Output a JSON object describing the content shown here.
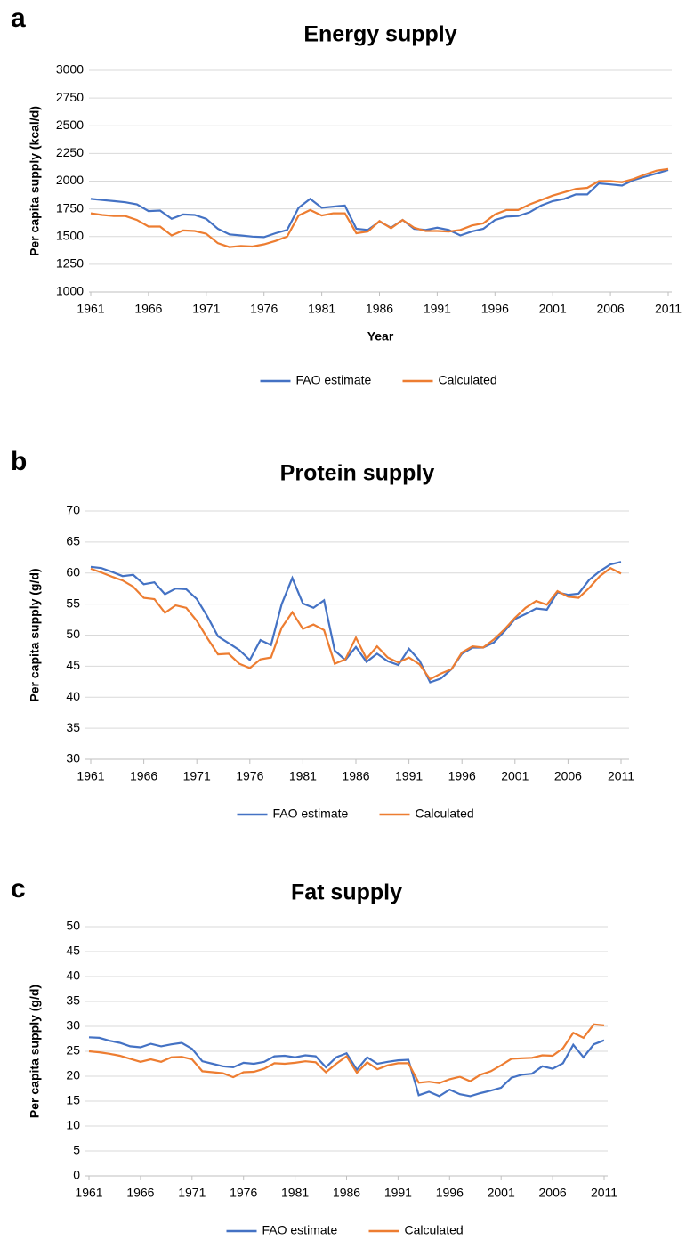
{
  "chart_data": [
    {
      "type": "line",
      "panel_label": "a",
      "title": "Energy supply",
      "x_label": "Year",
      "y_label": "Per capita supply (kcal/d)",
      "x": [
        1961,
        1962,
        1963,
        1964,
        1965,
        1966,
        1967,
        1968,
        1969,
        1970,
        1971,
        1972,
        1973,
        1974,
        1975,
        1976,
        1977,
        1978,
        1979,
        1980,
        1981,
        1982,
        1983,
        1984,
        1985,
        1986,
        1987,
        1988,
        1989,
        1990,
        1991,
        1992,
        1993,
        1994,
        1995,
        1996,
        1997,
        1998,
        1999,
        2000,
        2001,
        2002,
        2003,
        2004,
        2005,
        2006,
        2007,
        2008,
        2009,
        2010,
        2011
      ],
      "series": [
        {
          "name": "FAO estimate",
          "color": "#4472c4",
          "values": [
            1840,
            1830,
            1820,
            1810,
            1790,
            1730,
            1735,
            1660,
            1700,
            1695,
            1660,
            1570,
            1520,
            1510,
            1500,
            1495,
            1530,
            1560,
            1760,
            1840,
            1760,
            1770,
            1780,
            1570,
            1560,
            1635,
            1580,
            1650,
            1570,
            1560,
            1580,
            1560,
            1510,
            1545,
            1570,
            1650,
            1680,
            1685,
            1720,
            1780,
            1820,
            1840,
            1880,
            1880,
            1980,
            1970,
            1960,
            2010,
            2040,
            2070,
            2100
          ]
        },
        {
          "name": "Calculated",
          "color": "#ed7d31",
          "values": [
            1710,
            1695,
            1685,
            1685,
            1650,
            1590,
            1590,
            1510,
            1555,
            1550,
            1525,
            1440,
            1405,
            1415,
            1410,
            1430,
            1460,
            1500,
            1690,
            1740,
            1690,
            1710,
            1710,
            1530,
            1545,
            1640,
            1575,
            1650,
            1580,
            1550,
            1550,
            1545,
            1560,
            1600,
            1620,
            1700,
            1740,
            1740,
            1790,
            1830,
            1870,
            1900,
            1930,
            1940,
            2000,
            2000,
            1990,
            2020,
            2060,
            2095,
            2110
          ]
        }
      ],
      "xlim": [
        1961,
        2011
      ],
      "xticks": [
        1961,
        1966,
        1971,
        1976,
        1981,
        1986,
        1991,
        1996,
        2001,
        2006,
        2011
      ],
      "ylim": [
        1000,
        3000
      ],
      "yticks": [
        1000,
        1250,
        1500,
        1750,
        2000,
        2250,
        2500,
        2750,
        3000
      ],
      "grid": true,
      "legend": "bottom"
    },
    {
      "type": "line",
      "panel_label": "b",
      "title": "Protein supply",
      "y_label": "Per capita supply (g/d)",
      "x": [
        1961,
        1962,
        1963,
        1964,
        1965,
        1966,
        1967,
        1968,
        1969,
        1970,
        1971,
        1972,
        1973,
        1974,
        1975,
        1976,
        1977,
        1978,
        1979,
        1980,
        1981,
        1982,
        1983,
        1984,
        1985,
        1986,
        1987,
        1988,
        1989,
        1990,
        1991,
        1992,
        1993,
        1994,
        1995,
        1996,
        1997,
        1998,
        1999,
        2000,
        2001,
        2002,
        2003,
        2004,
        2005,
        2006,
        2007,
        2008,
        2009,
        2010,
        2011
      ],
      "series": [
        {
          "name": "FAO estimate",
          "color": "#4472c4",
          "values": [
            61,
            60.8,
            60.2,
            59.5,
            59.7,
            58.2,
            58.5,
            56.6,
            57.5,
            57.4,
            55.8,
            53,
            49.8,
            48.7,
            47.6,
            46,
            49.2,
            48.4,
            55,
            59.2,
            55.1,
            54.4,
            55.6,
            47.5,
            46,
            48.1,
            45.7,
            47,
            45.8,
            45.2,
            47.8,
            45.9,
            42.4,
            43,
            44.5,
            47,
            48,
            48,
            48.8,
            50.6,
            52.6,
            53.4,
            54.3,
            54.1,
            56.9,
            56.5,
            56.7,
            58.9,
            60.3,
            61.4,
            61.8
          ]
        },
        {
          "name": "Calculated",
          "color": "#ed7d31",
          "values": [
            60.7,
            60.1,
            59.4,
            58.8,
            57.8,
            56,
            55.8,
            53.6,
            54.8,
            54.4,
            52.3,
            49.5,
            46.9,
            47,
            45.4,
            44.7,
            46.1,
            46.4,
            51.2,
            53.7,
            51,
            51.7,
            50.8,
            45.4,
            46.1,
            49.6,
            46.2,
            48.2,
            46.4,
            45.6,
            46.4,
            45.3,
            42.9,
            43.8,
            44.5,
            47.2,
            48.2,
            48,
            49.3,
            50.9,
            52.8,
            54.4,
            55.5,
            54.9,
            57.1,
            56.2,
            56,
            57.6,
            59.5,
            60.8,
            59.9
          ]
        }
      ],
      "xlim": [
        1961,
        2011
      ],
      "xticks": [
        1961,
        1966,
        1971,
        1976,
        1981,
        1986,
        1991,
        1996,
        2001,
        2006,
        2011
      ],
      "ylim": [
        30,
        70
      ],
      "yticks": [
        30,
        35,
        40,
        45,
        50,
        55,
        60,
        65,
        70
      ],
      "grid": true,
      "legend": "bottom"
    },
    {
      "type": "line",
      "panel_label": "c",
      "title": "Fat supply",
      "y_label": "Per capita supply (g/d)",
      "x": [
        1961,
        1962,
        1963,
        1964,
        1965,
        1966,
        1967,
        1968,
        1969,
        1970,
        1971,
        1972,
        1973,
        1974,
        1975,
        1976,
        1977,
        1978,
        1979,
        1980,
        1981,
        1982,
        1983,
        1984,
        1985,
        1986,
        1987,
        1988,
        1989,
        1990,
        1991,
        1992,
        1993,
        1994,
        1995,
        1996,
        1997,
        1998,
        1999,
        2000,
        2001,
        2002,
        2003,
        2004,
        2005,
        2006,
        2007,
        2008,
        2009,
        2010,
        2011
      ],
      "series": [
        {
          "name": "FAO estimate",
          "color": "#4472c4",
          "values": [
            27.8,
            27.7,
            27.1,
            26.7,
            26,
            25.8,
            26.5,
            26,
            26.4,
            26.7,
            25.5,
            23,
            22.5,
            22,
            21.8,
            22.7,
            22.5,
            22.9,
            24,
            24.1,
            23.8,
            24.2,
            24,
            21.8,
            23.8,
            24.6,
            21.3,
            23.8,
            22.5,
            22.9,
            23.2,
            23.3,
            16.2,
            16.9,
            16,
            17.3,
            16.4,
            16,
            16.6,
            17.1,
            17.7,
            19.7,
            20.3,
            20.5,
            22,
            21.5,
            22.6,
            26.3,
            23.8,
            26.4,
            27.2
          ]
        },
        {
          "name": "Calculated",
          "color": "#ed7d31",
          "values": [
            25,
            24.8,
            24.5,
            24.1,
            23.5,
            22.9,
            23.4,
            22.9,
            23.8,
            23.9,
            23.4,
            21,
            20.8,
            20.6,
            19.8,
            20.8,
            20.9,
            21.5,
            22.6,
            22.5,
            22.7,
            23,
            22.8,
            20.8,
            22.5,
            24,
            20.7,
            22.8,
            21.4,
            22.2,
            22.6,
            22.6,
            18.7,
            18.9,
            18.6,
            19.4,
            19.9,
            19,
            20.3,
            21,
            22.2,
            23.5,
            23.6,
            23.7,
            24.2,
            24.1,
            25.6,
            28.7,
            27.7,
            30.4,
            30.2
          ]
        }
      ],
      "xlim": [
        1961,
        2011
      ],
      "xticks": [
        1961,
        1966,
        1971,
        1976,
        1981,
        1986,
        1991,
        1996,
        2001,
        2006,
        2011
      ],
      "ylim": [
        0,
        50
      ],
      "yticks": [
        0,
        5,
        10,
        15,
        20,
        25,
        30,
        35,
        40,
        45,
        50
      ],
      "grid": true,
      "legend": "bottom"
    }
  ]
}
